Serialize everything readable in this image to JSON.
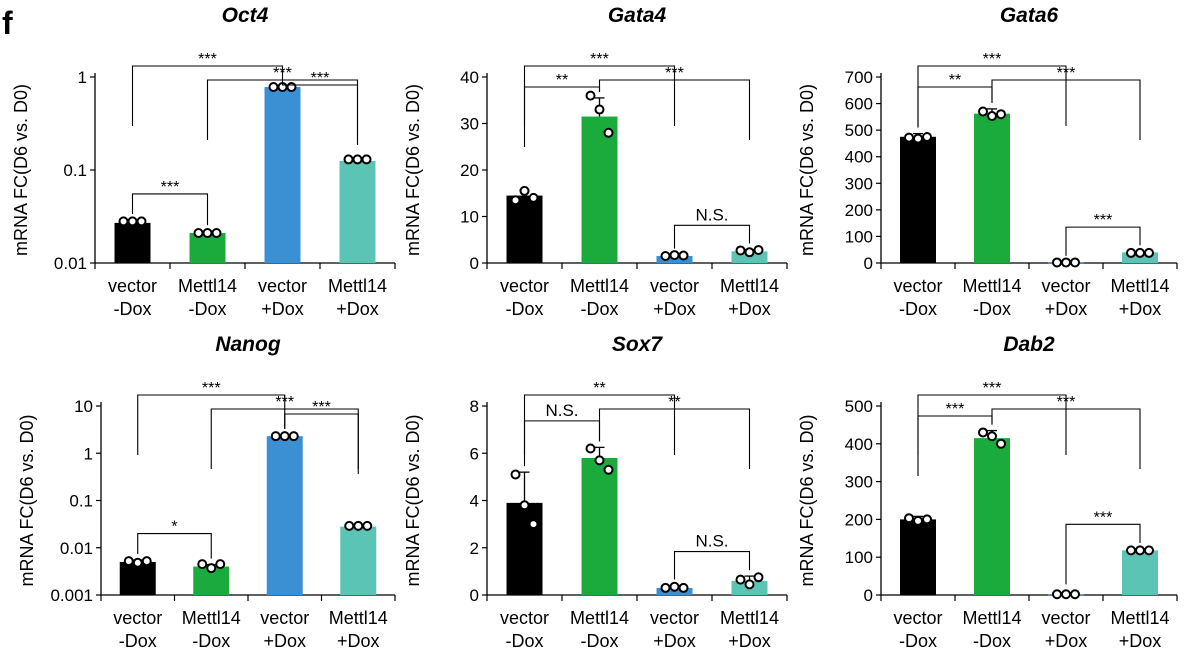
{
  "panel_label": "f",
  "colors": {
    "vector-Dox": "#000000",
    "Mettl14-Dox": "#1aab3c",
    "vector+Dox": "#3b8fd3",
    "Mettl14+Dox": "#5cc4b5"
  },
  "chart_data": [
    {
      "type": "bar",
      "title": "Oct4",
      "ylabel": "mRNA FC(D6 vs. D0)",
      "yscale": "log",
      "ylim": [
        0.01,
        1
      ],
      "yticks": [
        "0.01",
        "0.1",
        "1"
      ],
      "categories": [
        [
          "vector",
          "-Dox"
        ],
        [
          "Mettl14",
          "-Dox"
        ],
        [
          "vector",
          "+Dox"
        ],
        [
          "Mettl14",
          "+Dox"
        ]
      ],
      "values": [
        0.027,
        0.021,
        0.78,
        0.125
      ],
      "error": [
        0.002,
        0.001,
        0.03,
        0.003
      ],
      "points": [
        [
          0.028,
          0.028,
          0.028
        ],
        [
          0.021,
          0.021,
          0.021
        ],
        [
          0.78,
          0.78,
          0.78
        ],
        [
          0.13,
          0.13,
          0.13
        ]
      ],
      "annotations": [
        {
          "pair": [
            0,
            1
          ],
          "label": "***"
        },
        {
          "pair": [
            0,
            2
          ],
          "label": "***"
        },
        {
          "pair": [
            1,
            3
          ],
          "label": "***"
        },
        {
          "pair": [
            2,
            3
          ],
          "label": "***"
        }
      ]
    },
    {
      "type": "bar",
      "title": "Gata4",
      "ylabel": "mRNA FC(D6 vs. D0)",
      "yscale": "linear",
      "ylim": [
        0,
        40
      ],
      "yticks": [
        "0",
        "10",
        "20",
        "30",
        "40"
      ],
      "categories": [
        [
          "vector",
          "-Dox"
        ],
        [
          "Mettl14",
          "-Dox"
        ],
        [
          "vector",
          "+Dox"
        ],
        [
          "Mettl14",
          "+Dox"
        ]
      ],
      "values": [
        14.5,
        31.5,
        1.5,
        2.5
      ],
      "error": [
        1.2,
        4,
        0.3,
        0.4
      ],
      "points": [
        [
          13.5,
          15.5,
          14
        ],
        [
          36,
          33,
          28
        ],
        [
          1.5,
          1.7,
          1.6
        ],
        [
          2.7,
          2.3,
          2.8
        ]
      ],
      "annotations": [
        {
          "pair": [
            0,
            1
          ],
          "label": "**"
        },
        {
          "pair": [
            0,
            2
          ],
          "label": "***"
        },
        {
          "pair": [
            1,
            3
          ],
          "label": "***"
        },
        {
          "pair": [
            2,
            3
          ],
          "label": "N.S."
        }
      ]
    },
    {
      "type": "bar",
      "title": "Gata6",
      "ylabel": "mRNA FC(D6 vs. D0)",
      "yscale": "linear",
      "ylim": [
        0,
        700
      ],
      "yticks": [
        "0",
        "100",
        "200",
        "300",
        "400",
        "500",
        "600",
        "700"
      ],
      "categories": [
        [
          "vector",
          "-Dox"
        ],
        [
          "Mettl14",
          "-Dox"
        ],
        [
          "vector",
          "+Dox"
        ],
        [
          "Mettl14",
          "+Dox"
        ]
      ],
      "values": [
        475,
        562,
        3,
        40
      ],
      "error": [
        12,
        18,
        1,
        4
      ],
      "points": [
        [
          472,
          468,
          474
        ],
        [
          570,
          553,
          560
        ],
        [
          2,
          2,
          2
        ],
        [
          38,
          38,
          38
        ]
      ],
      "annotations": [
        {
          "pair": [
            0,
            1
          ],
          "label": "**"
        },
        {
          "pair": [
            0,
            2
          ],
          "label": "***"
        },
        {
          "pair": [
            1,
            3
          ],
          "label": "***"
        },
        {
          "pair": [
            2,
            3
          ],
          "label": "***"
        }
      ]
    },
    {
      "type": "bar",
      "title": "Nanog",
      "ylabel": "mRNA FC(D6 vs. D0)",
      "yscale": "log",
      "ylim": [
        0.001,
        10
      ],
      "yticks": [
        "0.001",
        "0.01",
        "0.1",
        "1",
        "10"
      ],
      "categories": [
        [
          "vector",
          "-Dox"
        ],
        [
          "Mettl14",
          "-Dox"
        ],
        [
          "vector",
          "+Dox"
        ],
        [
          "Mettl14",
          "+Dox"
        ]
      ],
      "values": [
        0.005,
        0.004,
        2.3,
        0.028
      ],
      "error": [
        0.0005,
        0.0004,
        0.15,
        0.002
      ],
      "points": [
        [
          0.0052,
          0.0048,
          0.0052
        ],
        [
          0.0045,
          0.0037,
          0.0045
        ],
        [
          2.3,
          2.3,
          2.3
        ],
        [
          0.029,
          0.029,
          0.029
        ]
      ],
      "annotations": [
        {
          "pair": [
            0,
            1
          ],
          "label": "*"
        },
        {
          "pair": [
            0,
            2
          ],
          "label": "***"
        },
        {
          "pair": [
            1,
            3
          ],
          "label": "***"
        },
        {
          "pair": [
            2,
            3
          ],
          "label": "***"
        }
      ]
    },
    {
      "type": "bar",
      "title": "Sox7",
      "ylabel": "mRNA FC(D6 vs. D0)",
      "yscale": "linear",
      "ylim": [
        0,
        8
      ],
      "yticks": [
        "0",
        "2",
        "4",
        "6",
        "8"
      ],
      "categories": [
        [
          "vector",
          "-Dox"
        ],
        [
          "Mettl14",
          "-Dox"
        ],
        [
          "vector",
          "+Dox"
        ],
        [
          "Mettl14",
          "+Dox"
        ]
      ],
      "values": [
        3.9,
        5.8,
        0.3,
        0.6
      ],
      "error": [
        1.3,
        0.45,
        0.1,
        0.2
      ],
      "points": [
        [
          5.1,
          3.8,
          3
        ],
        [
          6.2,
          5.7,
          5.3
        ],
        [
          0.3,
          0.35,
          0.3
        ],
        [
          0.65,
          0.45,
          0.75
        ]
      ],
      "annotations": [
        {
          "pair": [
            0,
            1
          ],
          "label": "N.S."
        },
        {
          "pair": [
            0,
            2
          ],
          "label": "**"
        },
        {
          "pair": [
            1,
            3
          ],
          "label": "**"
        },
        {
          "pair": [
            2,
            3
          ],
          "label": "N.S."
        }
      ]
    },
    {
      "type": "bar",
      "title": "Dab2",
      "ylabel": "mRNA FC(D6 vs. D0)",
      "yscale": "linear",
      "ylim": [
        0,
        500
      ],
      "yticks": [
        "0",
        "100",
        "200",
        "300",
        "400",
        "500"
      ],
      "categories": [
        [
          "vector",
          "-Dox"
        ],
        [
          "Mettl14",
          "-Dox"
        ],
        [
          "vector",
          "+Dox"
        ],
        [
          "Mettl14",
          "+Dox"
        ]
      ],
      "values": [
        200,
        415,
        2,
        118
      ],
      "error": [
        8,
        20,
        1,
        4
      ],
      "points": [
        [
          203,
          196,
          200
        ],
        [
          430,
          420,
          400
        ],
        [
          2,
          2,
          2
        ],
        [
          118,
          118,
          118
        ]
      ],
      "annotations": [
        {
          "pair": [
            0,
            1
          ],
          "label": "***"
        },
        {
          "pair": [
            0,
            2
          ],
          "label": "***"
        },
        {
          "pair": [
            1,
            3
          ],
          "label": "***"
        },
        {
          "pair": [
            2,
            3
          ],
          "label": "***"
        }
      ]
    }
  ]
}
